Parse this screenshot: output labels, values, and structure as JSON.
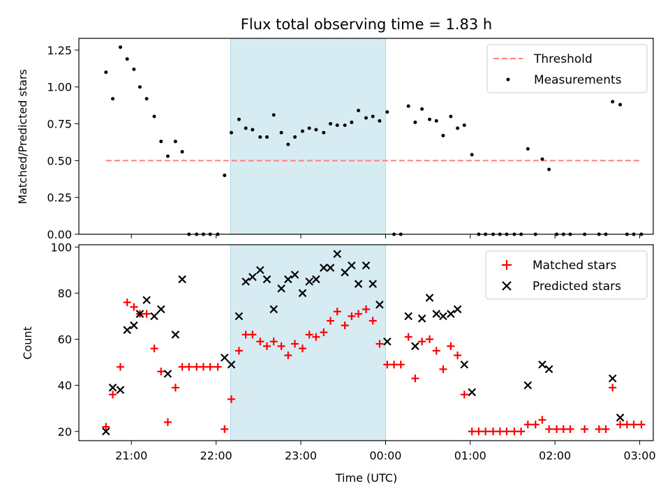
{
  "chart_data": [
    {
      "type": "scatter",
      "title": "Flux total observing time = 1.83 h",
      "xlabel": "",
      "ylabel": "Matched/Predicted stars",
      "x_unit": "hours (UTC, 21.0 = 21:00, 24.0 = 00:00 next day)",
      "xlim": [
        20.38,
        27.16
      ],
      "ylim": [
        0,
        1.33
      ],
      "yticks": [
        0.0,
        0.25,
        0.5,
        0.75,
        1.0,
        1.25
      ],
      "ytick_labels": [
        "0.00",
        "0.25",
        "0.50",
        "0.75",
        "1.00",
        "1.25"
      ],
      "shaded_span": [
        22.17,
        24.0
      ],
      "shade_color": "#add8e6",
      "threshold": {
        "name": "Threshold",
        "y": 0.5,
        "x_range": [
          20.7,
          27.0
        ],
        "color": "#ff7f7f",
        "style": "dashed"
      },
      "legend": {
        "placement": "top-right",
        "entries": [
          "Threshold",
          "Measurements"
        ]
      },
      "series": [
        {
          "name": "Measurements",
          "color": "#000000",
          "marker": "dot",
          "points": [
            [
              20.7,
              1.1
            ],
            [
              20.78,
              0.92
            ],
            [
              20.87,
              1.27
            ],
            [
              20.95,
              1.19
            ],
            [
              21.03,
              1.12
            ],
            [
              21.1,
              1.0
            ],
            [
              21.18,
              0.92
            ],
            [
              21.27,
              0.8
            ],
            [
              21.35,
              0.63
            ],
            [
              21.43,
              0.53
            ],
            [
              21.52,
              0.63
            ],
            [
              21.6,
              0.56
            ],
            [
              21.68,
              0.0
            ],
            [
              21.77,
              0.0
            ],
            [
              21.85,
              0.0
            ],
            [
              21.93,
              0.0
            ],
            [
              22.02,
              0.0
            ],
            [
              22.1,
              0.4
            ],
            [
              22.18,
              0.69
            ],
            [
              22.27,
              0.78
            ],
            [
              22.35,
              0.72
            ],
            [
              22.43,
              0.71
            ],
            [
              22.52,
              0.66
            ],
            [
              22.6,
              0.66
            ],
            [
              22.68,
              0.81
            ],
            [
              22.77,
              0.69
            ],
            [
              22.85,
              0.61
            ],
            [
              22.93,
              0.66
            ],
            [
              23.02,
              0.7
            ],
            [
              23.1,
              0.72
            ],
            [
              23.18,
              0.71
            ],
            [
              23.27,
              0.69
            ],
            [
              23.35,
              0.75
            ],
            [
              23.43,
              0.74
            ],
            [
              23.52,
              0.74
            ],
            [
              23.6,
              0.76
            ],
            [
              23.68,
              0.84
            ],
            [
              23.77,
              0.79
            ],
            [
              23.85,
              0.8
            ],
            [
              23.93,
              0.77
            ],
            [
              24.02,
              0.83
            ],
            [
              24.1,
              0.0
            ],
            [
              24.18,
              0.0
            ],
            [
              24.27,
              0.87
            ],
            [
              24.35,
              0.76
            ],
            [
              24.43,
              0.85
            ],
            [
              24.52,
              0.78
            ],
            [
              24.6,
              0.77
            ],
            [
              24.68,
              0.67
            ],
            [
              24.77,
              0.8
            ],
            [
              24.85,
              0.72
            ],
            [
              24.93,
              0.74
            ],
            [
              25.02,
              0.54
            ],
            [
              25.1,
              0.0
            ],
            [
              25.18,
              0.0
            ],
            [
              25.27,
              0.0
            ],
            [
              25.35,
              0.0
            ],
            [
              25.43,
              0.0
            ],
            [
              25.52,
              0.0
            ],
            [
              25.6,
              0.0
            ],
            [
              25.68,
              0.58
            ],
            [
              25.77,
              0.0
            ],
            [
              25.85,
              0.51
            ],
            [
              25.93,
              0.44
            ],
            [
              26.02,
              0.0
            ],
            [
              26.1,
              0.0
            ],
            [
              26.18,
              0.0
            ],
            [
              26.35,
              0.0
            ],
            [
              26.52,
              0.0
            ],
            [
              26.6,
              0.0
            ],
            [
              26.68,
              0.9
            ],
            [
              26.77,
              0.88
            ],
            [
              26.85,
              0.0
            ],
            [
              26.93,
              0.0
            ],
            [
              27.02,
              0.0
            ]
          ]
        }
      ]
    },
    {
      "type": "scatter",
      "title": "",
      "xlabel": "Time (UTC)",
      "ylabel": "Count",
      "x_unit": "hours (UTC, 21.0 = 21:00, 24.0 = 00:00 next day)",
      "xlim": [
        20.38,
        27.16
      ],
      "ylim": [
        16,
        101
      ],
      "yticks": [
        20,
        40,
        60,
        80,
        100
      ],
      "ytick_labels": [
        "20",
        "40",
        "60",
        "80",
        "100"
      ],
      "xticks": [
        21,
        22,
        23,
        24,
        25,
        26,
        27
      ],
      "xtick_labels": [
        "21:00",
        "22:00",
        "23:00",
        "00:00",
        "01:00",
        "02:00",
        "03:00"
      ],
      "shaded_span": [
        22.17,
        24.0
      ],
      "shade_color": "#add8e6",
      "legend": {
        "placement": "top-right",
        "entries": [
          "Matched stars",
          "Predicted stars"
        ]
      },
      "series": [
        {
          "name": "Matched stars",
          "color": "#ff0000",
          "marker": "plus",
          "points": [
            [
              20.7,
              22
            ],
            [
              20.78,
              36
            ],
            [
              20.87,
              48
            ],
            [
              20.95,
              76
            ],
            [
              21.03,
              74
            ],
            [
              21.1,
              71
            ],
            [
              21.18,
              71
            ],
            [
              21.27,
              56
            ],
            [
              21.35,
              46
            ],
            [
              21.43,
              24
            ],
            [
              21.52,
              39
            ],
            [
              21.6,
              48
            ],
            [
              21.68,
              48
            ],
            [
              21.77,
              48
            ],
            [
              21.85,
              48
            ],
            [
              21.93,
              48
            ],
            [
              22.02,
              48
            ],
            [
              22.1,
              21
            ],
            [
              22.18,
              34
            ],
            [
              22.27,
              55
            ],
            [
              22.35,
              62
            ],
            [
              22.43,
              62
            ],
            [
              22.52,
              59
            ],
            [
              22.6,
              57
            ],
            [
              22.68,
              59
            ],
            [
              22.77,
              57
            ],
            [
              22.85,
              53
            ],
            [
              22.93,
              58
            ],
            [
              23.02,
              56
            ],
            [
              23.1,
              62
            ],
            [
              23.18,
              61
            ],
            [
              23.27,
              63
            ],
            [
              23.35,
              68
            ],
            [
              23.43,
              72
            ],
            [
              23.52,
              66
            ],
            [
              23.6,
              70
            ],
            [
              23.68,
              71
            ],
            [
              23.77,
              73
            ],
            [
              23.85,
              68
            ],
            [
              23.93,
              58
            ],
            [
              24.02,
              49
            ],
            [
              24.1,
              49
            ],
            [
              24.18,
              49
            ],
            [
              24.27,
              61
            ],
            [
              24.35,
              43
            ],
            [
              24.43,
              59
            ],
            [
              24.52,
              60
            ],
            [
              24.6,
              55
            ],
            [
              24.68,
              47
            ],
            [
              24.77,
              57
            ],
            [
              24.85,
              53
            ],
            [
              24.93,
              36
            ],
            [
              25.02,
              20
            ],
            [
              25.1,
              20
            ],
            [
              25.18,
              20
            ],
            [
              25.27,
              20
            ],
            [
              25.35,
              20
            ],
            [
              25.43,
              20
            ],
            [
              25.52,
              20
            ],
            [
              25.6,
              20
            ],
            [
              25.68,
              23
            ],
            [
              25.77,
              23
            ],
            [
              25.85,
              25
            ],
            [
              25.93,
              21
            ],
            [
              26.02,
              21
            ],
            [
              26.1,
              21
            ],
            [
              26.18,
              21
            ],
            [
              26.35,
              21
            ],
            [
              26.52,
              21
            ],
            [
              26.6,
              21
            ],
            [
              26.68,
              39
            ],
            [
              26.77,
              23
            ],
            [
              26.85,
              23
            ],
            [
              26.93,
              23
            ],
            [
              27.02,
              23
            ]
          ]
        },
        {
          "name": "Predicted stars",
          "color": "#000000",
          "marker": "x",
          "points": [
            [
              20.7,
              20
            ],
            [
              20.78,
              39
            ],
            [
              20.87,
              38
            ],
            [
              20.95,
              64
            ],
            [
              21.03,
              66
            ],
            [
              21.1,
              71
            ],
            [
              21.18,
              77
            ],
            [
              21.27,
              70
            ],
            [
              21.35,
              73
            ],
            [
              21.43,
              45
            ],
            [
              21.52,
              62
            ],
            [
              21.6,
              86
            ],
            [
              22.1,
              52
            ],
            [
              22.18,
              49
            ],
            [
              22.27,
              70
            ],
            [
              22.35,
              85
            ],
            [
              22.43,
              87
            ],
            [
              22.52,
              90
            ],
            [
              22.6,
              86
            ],
            [
              22.68,
              73
            ],
            [
              22.77,
              82
            ],
            [
              22.85,
              86
            ],
            [
              22.93,
              88
            ],
            [
              23.02,
              80
            ],
            [
              23.1,
              85
            ],
            [
              23.18,
              86
            ],
            [
              23.27,
              91
            ],
            [
              23.35,
              91
            ],
            [
              23.43,
              97
            ],
            [
              23.52,
              89
            ],
            [
              23.6,
              92
            ],
            [
              23.68,
              84
            ],
            [
              23.77,
              92
            ],
            [
              23.85,
              84
            ],
            [
              23.93,
              75
            ],
            [
              24.02,
              59
            ],
            [
              24.27,
              70
            ],
            [
              24.35,
              57
            ],
            [
              24.43,
              69
            ],
            [
              24.52,
              78
            ],
            [
              24.6,
              71
            ],
            [
              24.68,
              70
            ],
            [
              24.77,
              71
            ],
            [
              24.85,
              73
            ],
            [
              24.93,
              49
            ],
            [
              25.02,
              37
            ],
            [
              25.68,
              40
            ],
            [
              25.85,
              49
            ],
            [
              25.93,
              47
            ],
            [
              26.68,
              43
            ],
            [
              26.77,
              26
            ]
          ]
        }
      ]
    }
  ]
}
